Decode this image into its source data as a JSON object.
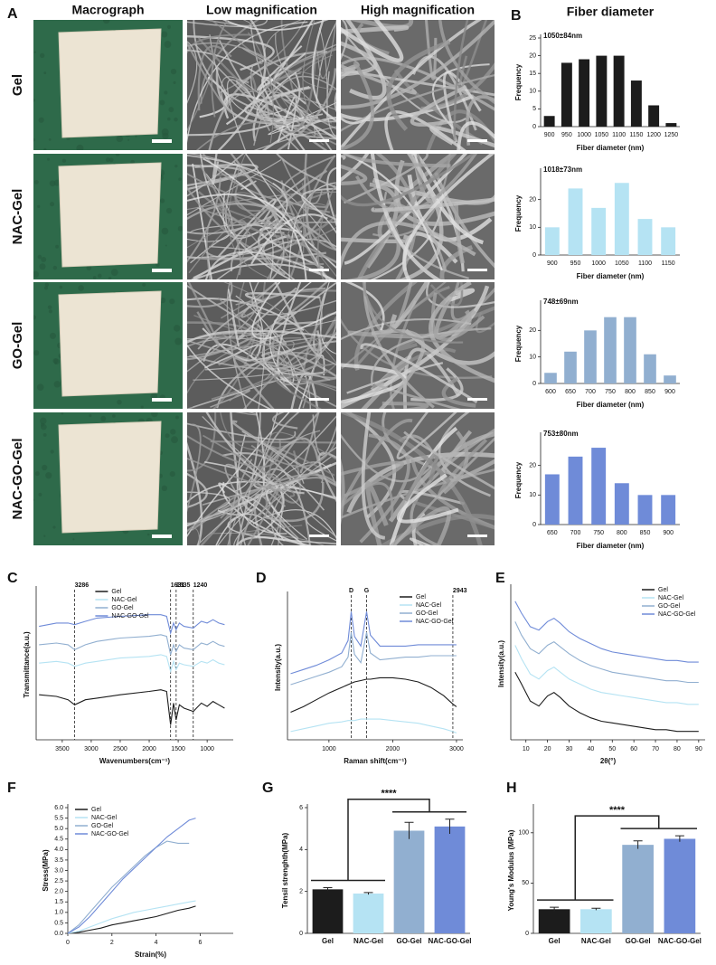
{
  "panel_a": {
    "letter": "A",
    "columns": [
      "Macrograph",
      "Low magnification",
      "High magnification"
    ],
    "rows": [
      "Gel",
      "NAC-Gel",
      "GO-Gel",
      "NAC-GO-Gel"
    ]
  },
  "chart_data": [
    {
      "type": "bar",
      "panel": "B",
      "title": "Fiber diameter",
      "annotation": "1050±84nm",
      "color": "#1c1c1c",
      "categories": [
        900,
        950,
        1000,
        1050,
        1100,
        1150,
        1200,
        1250
      ],
      "values": [
        3,
        18,
        19,
        20,
        20,
        13,
        6,
        1
      ],
      "ylim": [
        0,
        25
      ],
      "yticks": [
        0,
        5,
        10,
        15,
        20,
        25
      ],
      "x_label": "Fiber diameter (nm)",
      "y_label": "Frequency"
    },
    {
      "type": "bar",
      "annotation": "1018±73nm",
      "color": "#b5e3f3",
      "categories": [
        900,
        950,
        1000,
        1050,
        1100,
        1150
      ],
      "values": [
        10,
        24,
        17,
        26,
        13,
        10
      ],
      "ylim": [
        0,
        30
      ],
      "yticks": [
        0,
        10,
        20
      ],
      "x_label": "Fiber diameter (nm)",
      "y_label": "Frequency"
    },
    {
      "type": "bar",
      "annotation": "748±69nm",
      "color": "#91afd0",
      "categories": [
        600,
        650,
        700,
        750,
        800,
        850,
        900
      ],
      "values": [
        4,
        12,
        20,
        25,
        25,
        11,
        3
      ],
      "ylim": [
        0,
        30
      ],
      "yticks": [
        0,
        10,
        20
      ],
      "x_label": "Fiber diameter (nm)",
      "y_label": "Frequency"
    },
    {
      "type": "bar",
      "annotation": "753±80nm",
      "color": "#6f8bd8",
      "categories": [
        650,
        700,
        750,
        800,
        850,
        900
      ],
      "values": [
        17,
        23,
        26,
        14,
        10,
        10
      ],
      "ylim": [
        0,
        30
      ],
      "yticks": [
        0,
        10,
        20
      ],
      "x_label": "Fiber diameter (nm)",
      "y_label": "Frequency"
    },
    {
      "type": "line",
      "panel": "C",
      "x_label": "Wavenumbers(cm⁻¹)",
      "y_label": "Transmittance(a.u.)",
      "legend": "upper center",
      "x": [
        3900,
        3600,
        3400,
        3286,
        3100,
        2900,
        2500,
        2000,
        1800,
        1700,
        1631,
        1580,
        1535,
        1480,
        1400,
        1240,
        1100,
        1000,
        900,
        800,
        700
      ],
      "xlim": [
        3950,
        550
      ],
      "xticks": [
        3500,
        3000,
        2500,
        2000,
        1500,
        1000
      ],
      "ylim": [
        -1.5,
        7.5
      ],
      "markers": [
        3286,
        1631,
        1535,
        1240
      ],
      "series": [
        {
          "name": "Gel",
          "color": "#1c1c1c",
          "values": [
            1.2,
            1.1,
            0.9,
            0.6,
            0.9,
            1.0,
            1.2,
            1.4,
            1.5,
            1.4,
            -0.6,
            0.7,
            -0.3,
            0.6,
            0.4,
            0.2,
            0.7,
            0.5,
            0.8,
            0.6,
            0.4
          ]
        },
        {
          "name": "NAC-Gel",
          "color": "#b5e3f3",
          "values": [
            3.1,
            3.2,
            3.1,
            2.9,
            3.1,
            3.2,
            3.4,
            3.5,
            3.6,
            3.5,
            2.6,
            3.2,
            2.7,
            3.1,
            3.0,
            2.9,
            3.2,
            3.1,
            3.3,
            3.1,
            3.0
          ]
        },
        {
          "name": "GO-Gel",
          "color": "#91afd0",
          "values": [
            4.2,
            4.3,
            4.2,
            3.9,
            4.2,
            4.4,
            4.6,
            4.7,
            4.8,
            4.7,
            3.6,
            4.2,
            3.8,
            4.2,
            4.0,
            3.9,
            4.3,
            4.2,
            4.4,
            4.2,
            4.1
          ]
        },
        {
          "name": "NAC-GO-Gel",
          "color": "#6f8bd8",
          "values": [
            5.3,
            5.5,
            5.5,
            5.4,
            5.6,
            5.8,
            5.9,
            6.0,
            6.0,
            5.9,
            4.9,
            5.5,
            5.1,
            5.5,
            5.3,
            5.2,
            5.6,
            5.5,
            5.7,
            5.5,
            5.4
          ]
        }
      ]
    },
    {
      "type": "line",
      "panel": "D",
      "x_label": "Raman shift(cm⁻¹)",
      "y_label": "Intensity(a.u.)",
      "legend": "upper right",
      "x": [
        400,
        600,
        800,
        1000,
        1200,
        1300,
        1350,
        1400,
        1500,
        1590,
        1650,
        1800,
        2000,
        2200,
        2400,
        2600,
        2800,
        2943,
        3000
      ],
      "xlim": [
        350,
        3100
      ],
      "xticks": [
        1000,
        2000,
        3000
      ],
      "ylim": [
        0,
        10.5
      ],
      "markers": [
        {
          "value": 1350,
          "label": "D"
        },
        {
          "value": 1590,
          "label": "G"
        },
        2943
      ],
      "series": [
        {
          "name": "Gel",
          "color": "#1c1c1c",
          "values": [
            2.0,
            2.4,
            2.9,
            3.4,
            3.8,
            4.0,
            4.1,
            4.2,
            4.3,
            4.4,
            4.4,
            4.5,
            4.5,
            4.4,
            4.2,
            3.8,
            3.2,
            2.6,
            2.4
          ]
        },
        {
          "name": "NAC-Gel",
          "color": "#b5e3f3",
          "values": [
            0.6,
            0.8,
            1.0,
            1.2,
            1.3,
            1.4,
            1.4,
            1.4,
            1.5,
            1.5,
            1.5,
            1.5,
            1.4,
            1.3,
            1.2,
            1.0,
            0.8,
            0.6,
            0.5
          ]
        },
        {
          "name": "GO-Gel",
          "color": "#91afd0",
          "values": [
            4.0,
            4.3,
            4.6,
            4.9,
            5.3,
            6.0,
            7.8,
            6.2,
            5.6,
            7.8,
            6.3,
            5.8,
            5.9,
            6.0,
            6.0,
            6.1,
            6.1,
            6.1,
            6.1
          ]
        },
        {
          "name": "NAC-GO-Gel",
          "color": "#6f8bd8",
          "values": [
            4.8,
            5.1,
            5.4,
            5.8,
            6.3,
            7.2,
            9.3,
            7.5,
            6.8,
            9.3,
            7.6,
            6.8,
            6.8,
            6.8,
            6.9,
            6.9,
            6.9,
            6.9,
            6.9
          ]
        }
      ]
    },
    {
      "type": "line",
      "panel": "E",
      "x_label": "2θ(°)",
      "y_label": "Intensity(a.u.)",
      "legend": "upper right",
      "x": [
        5,
        8,
        12,
        16,
        20,
        23,
        26,
        30,
        35,
        40,
        45,
        50,
        55,
        60,
        65,
        70,
        75,
        80,
        85,
        90
      ],
      "xlim": [
        3,
        93
      ],
      "xticks": [
        10,
        20,
        30,
        40,
        50,
        60,
        70,
        80,
        90
      ],
      "ylim": [
        0,
        9
      ],
      "series": [
        {
          "name": "Gel",
          "color": "#1c1c1c",
          "values": [
            4.0,
            3.3,
            2.3,
            2.0,
            2.6,
            2.8,
            2.5,
            2.0,
            1.6,
            1.3,
            1.1,
            1.0,
            0.9,
            0.8,
            0.7,
            0.6,
            0.6,
            0.5,
            0.5,
            0.5
          ]
        },
        {
          "name": "NAC-Gel",
          "color": "#b5e3f3",
          "values": [
            5.6,
            4.8,
            3.9,
            3.6,
            4.1,
            4.3,
            4.0,
            3.6,
            3.3,
            3.0,
            2.8,
            2.7,
            2.6,
            2.5,
            2.4,
            2.3,
            2.2,
            2.2,
            2.1,
            2.1
          ]
        },
        {
          "name": "GO-Gel",
          "color": "#91afd0",
          "values": [
            7.0,
            6.2,
            5.4,
            5.1,
            5.6,
            5.8,
            5.5,
            5.1,
            4.7,
            4.4,
            4.2,
            4.0,
            3.9,
            3.8,
            3.7,
            3.6,
            3.5,
            3.5,
            3.4,
            3.4
          ]
        },
        {
          "name": "NAC-GO-Gel",
          "color": "#6f8bd8",
          "values": [
            8.2,
            7.5,
            6.7,
            6.5,
            7.0,
            7.2,
            6.9,
            6.4,
            6.0,
            5.7,
            5.4,
            5.2,
            5.1,
            5.0,
            4.9,
            4.8,
            4.7,
            4.7,
            4.6,
            4.6
          ]
        }
      ]
    },
    {
      "type": "line",
      "panel": "F",
      "x_label": "Strain(%)",
      "y_label": "Stress(MPa)",
      "legend": "upper left",
      "x": [
        0,
        0.5,
        1,
        1.5,
        2,
        2.5,
        3,
        3.5,
        4,
        4.5,
        5,
        5.5,
        5.8
      ],
      "xlim": [
        0,
        7.5
      ],
      "xticks": [
        0,
        2,
        4,
        6
      ],
      "ylim": [
        0,
        6
      ],
      "yticks": [
        {
          "value": 0,
          "label": "0.0"
        },
        0.5,
        {
          "value": 1,
          "label": "1.0"
        },
        1.5,
        {
          "value": 2,
          "label": "2.0"
        },
        2.5,
        {
          "value": 3,
          "label": "3.0"
        },
        3.5,
        {
          "value": 4,
          "label": "4.0"
        },
        4.5,
        {
          "value": 5,
          "label": "5.0"
        },
        5.5,
        {
          "value": 6,
          "label": "6.0"
        }
      ],
      "series": [
        {
          "name": "Gel",
          "color": "#1c1c1c",
          "values": [
            0,
            0.05,
            0.15,
            0.25,
            0.4,
            0.5,
            0.6,
            0.7,
            0.8,
            0.95,
            1.1,
            1.2,
            1.3
          ]
        },
        {
          "name": "NAC-Gel",
          "color": "#b5e3f3",
          "values": [
            0,
            0.1,
            0.3,
            0.5,
            0.7,
            0.85,
            1.0,
            1.1,
            1.2,
            1.3,
            1.4,
            1.5,
            1.55
          ]
        },
        {
          "name": "GO-Gel",
          "color": "#91afd0",
          "values": [
            0,
            0.4,
            1.0,
            1.6,
            2.2,
            2.7,
            3.2,
            3.7,
            4.1,
            4.4,
            4.3,
            4.3,
            null
          ]
        },
        {
          "name": "NAC-GO-Gel",
          "color": "#6f8bd8",
          "values": [
            0,
            0.3,
            0.8,
            1.4,
            2.0,
            2.6,
            3.1,
            3.6,
            4.1,
            4.6,
            5.0,
            5.4,
            5.5
          ]
        }
      ]
    },
    {
      "type": "bar",
      "panel": "G",
      "y_label": "Tensil strenghth(MPa)",
      "significance": "****",
      "categories": [
        "Gel",
        "NAC-Gel",
        "GO-Gel",
        "NAC-GO-Gel"
      ],
      "values": [
        2.1,
        1.9,
        4.9,
        5.1
      ],
      "errors": [
        0.08,
        0.05,
        0.4,
        0.35
      ],
      "colors": [
        "#1c1c1c",
        "#b5e3f3",
        "#91afd0",
        "#6f8bd8"
      ],
      "ylim": [
        0,
        6
      ],
      "yticks": [
        0,
        2,
        4,
        6
      ]
    },
    {
      "type": "bar",
      "panel": "H",
      "y_label": "Young's Modulus (MPa)",
      "significance": "****",
      "categories": [
        "Gel",
        "NAC-Gel",
        "GO-Gel",
        "NAC-GO-Gel"
      ],
      "values": [
        24,
        24,
        88,
        94
      ],
      "errors": [
        2,
        1,
        4,
        3
      ],
      "colors": [
        "#1c1c1c",
        "#b5e3f3",
        "#91afd0",
        "#6f8bd8"
      ],
      "ylim": [
        0,
        125
      ],
      "yticks": [
        0,
        50,
        100
      ]
    }
  ]
}
